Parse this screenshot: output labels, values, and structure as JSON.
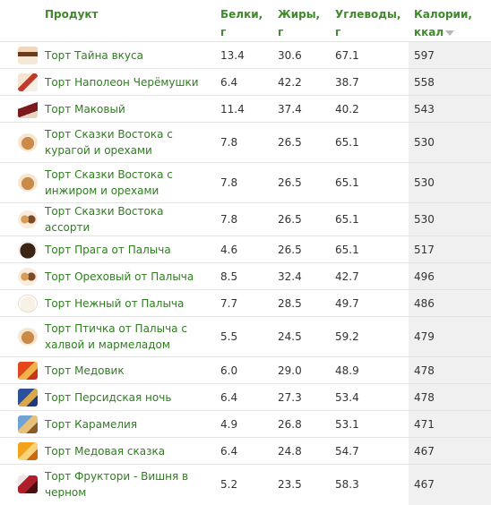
{
  "headers": {
    "product": "Продукт",
    "protein": "Белки, г",
    "fat": "Жиры, г",
    "carbs": "Углеводы, г",
    "calories": "Калории, ккал"
  },
  "rows": [
    {
      "name": "Торт Тайна вкуса",
      "protein": "13.4",
      "fat": "30.6",
      "carbs": "67.1",
      "calories": "597",
      "icon": "cake-thumbnail-icon"
    },
    {
      "name": "Торт Наполеон Черёмушки",
      "protein": "6.4",
      "fat": "42.2",
      "carbs": "38.7",
      "calories": "558",
      "icon": "cake-box-thumbnail-icon"
    },
    {
      "name": "Торт Маковый",
      "protein": "11.4",
      "fat": "37.4",
      "carbs": "40.2",
      "calories": "543",
      "icon": "cake-slice-thumbnail-icon"
    },
    {
      "name": "Торт Сказки Востока с курагой и орехами",
      "protein": "7.8",
      "fat": "26.5",
      "carbs": "65.1",
      "calories": "530",
      "icon": "cake-thumbnail-icon"
    },
    {
      "name": "Торт Сказки Востока с инжиром и орехами",
      "protein": "7.8",
      "fat": "26.5",
      "carbs": "65.1",
      "calories": "530",
      "icon": "cake-thumbnail-icon"
    },
    {
      "name": "Торт Сказки Востока ассорти",
      "protein": "7.8",
      "fat": "26.5",
      "carbs": "65.1",
      "calories": "530",
      "icon": "cake-thumbnail-icon"
    },
    {
      "name": "Торт Прага от Палыча",
      "protein": "4.6",
      "fat": "26.5",
      "carbs": "65.1",
      "calories": "517",
      "icon": "cake-thumbnail-icon"
    },
    {
      "name": "Торт Ореховый от Палыча",
      "protein": "8.5",
      "fat": "32.4",
      "carbs": "42.7",
      "calories": "496",
      "icon": "cake-thumbnail-icon"
    },
    {
      "name": "Торт Нежный от Палыча",
      "protein": "7.7",
      "fat": "28.5",
      "carbs": "49.7",
      "calories": "486",
      "icon": "cake-thumbnail-icon"
    },
    {
      "name": "Торт Птичка от Палыча с халвой и мармеладом",
      "protein": "5.5",
      "fat": "24.5",
      "carbs": "59.2",
      "calories": "479",
      "icon": "cake-thumbnail-icon"
    },
    {
      "name": "Торт Медовик",
      "protein": "6.0",
      "fat": "29.0",
      "carbs": "48.9",
      "calories": "478",
      "icon": "cake-box-thumbnail-icon"
    },
    {
      "name": "Торт Персидская ночь",
      "protein": "6.4",
      "fat": "27.3",
      "carbs": "53.4",
      "calories": "478",
      "icon": "cake-box-thumbnail-icon"
    },
    {
      "name": "Торт Карамелия",
      "protein": "4.9",
      "fat": "26.8",
      "carbs": "53.1",
      "calories": "471",
      "icon": "cake-box-thumbnail-icon"
    },
    {
      "name": "Торт Медовая сказка",
      "protein": "6.4",
      "fat": "24.8",
      "carbs": "54.7",
      "calories": "467",
      "icon": "cake-box-thumbnail-icon"
    },
    {
      "name": "Торт Фруктори - Вишня в черном",
      "protein": "5.2",
      "fat": "23.5",
      "carbs": "58.3",
      "calories": "467",
      "icon": "cake-box-thumbnail-icon"
    }
  ],
  "colors": {
    "header_text": "#3f8a2a",
    "link_text": "#2e7d1f",
    "calories_column_bg": "#f0f0f0",
    "row_border": "#e4e4e4"
  }
}
